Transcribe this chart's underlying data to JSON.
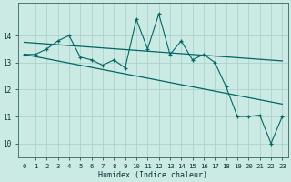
{
  "xlabel": "Humidex (Indice chaleur)",
  "bg_color": "#cceae4",
  "grid_color": "#aad4cc",
  "line_color": "#006666",
  "x_values": [
    0,
    1,
    2,
    3,
    4,
    5,
    6,
    7,
    8,
    9,
    10,
    11,
    12,
    13,
    14,
    15,
    16,
    17,
    18,
    19,
    20,
    21,
    22,
    23
  ],
  "y_main": [
    13.3,
    13.3,
    13.5,
    13.8,
    14.0,
    13.2,
    13.1,
    12.9,
    13.1,
    12.8,
    14.6,
    13.5,
    14.8,
    13.3,
    13.8,
    13.1,
    13.3,
    13.0,
    12.1,
    11.0,
    11.0,
    11.05,
    10.0,
    11.0
  ],
  "y_upper": [
    13.75,
    13.72,
    13.69,
    13.66,
    13.63,
    13.6,
    13.57,
    13.54,
    13.51,
    13.48,
    13.45,
    13.42,
    13.39,
    13.36,
    13.33,
    13.3,
    13.27,
    13.24,
    13.21,
    13.18,
    13.15,
    13.12,
    13.09,
    13.06
  ],
  "y_lower": [
    13.3,
    13.22,
    13.14,
    13.06,
    12.98,
    12.9,
    12.82,
    12.74,
    12.66,
    12.58,
    12.5,
    12.42,
    12.34,
    12.26,
    12.18,
    12.1,
    12.02,
    11.94,
    11.86,
    11.78,
    11.7,
    11.62,
    11.54,
    11.46
  ],
  "ylim": [
    9.5,
    15.2
  ],
  "xlim": [
    -0.5,
    23.5
  ],
  "yticks": [
    10,
    11,
    12,
    13,
    14
  ],
  "xticks": [
    0,
    1,
    2,
    3,
    4,
    5,
    6,
    7,
    8,
    9,
    10,
    11,
    12,
    13,
    14,
    15,
    16,
    17,
    18,
    19,
    20,
    21,
    22,
    23
  ]
}
